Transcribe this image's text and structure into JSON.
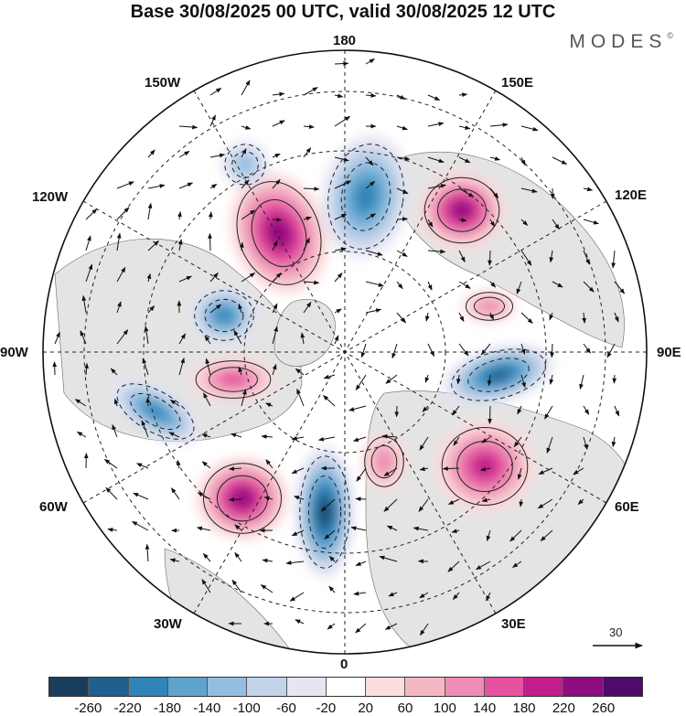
{
  "header": {
    "title": "Base 30/08/2025 00 UTC, valid 30/08/2025 12 UTC",
    "brand": "MODES",
    "brand_mark": "©"
  },
  "map": {
    "projection": "north-polar-stereographic",
    "longitude_labels": {
      "top": "180",
      "top_right": "150E",
      "upper_right": "120E",
      "right": "90E",
      "lower_right": "60E",
      "bottom_right": "30E",
      "bottom": "0",
      "bottom_left": "30W",
      "lower_left": "60W",
      "left": "90W",
      "upper_left": "120W",
      "top_left": "150W"
    },
    "colors": {
      "land": "#e4e4e4",
      "ocean": "#ffffff",
      "graticule": "#222222",
      "coast": "#555555"
    }
  },
  "vector_reference": {
    "label": "30"
  },
  "colorbar": {
    "ticks": [
      "-260",
      "-220",
      "-180",
      "-140",
      "-100",
      "-60",
      "-20",
      "20",
      "60",
      "100",
      "140",
      "180",
      "220",
      "260"
    ],
    "colors": [
      "#1b3d5c",
      "#20608f",
      "#2f84b8",
      "#5fa4cf",
      "#93bedf",
      "#c3d3ea",
      "#e6e6f3",
      "#ffffff",
      "#fadede",
      "#f4b8c4",
      "#ee8cb5",
      "#e5529f",
      "#c31d8c",
      "#8d0c7e",
      "#4f0b6b"
    ]
  },
  "anomalies": [
    {
      "name": "pos-west-pacific",
      "value": 240
    },
    {
      "name": "neg-east-siberia",
      "value": -200
    },
    {
      "name": "pos-far-east",
      "value": 220
    },
    {
      "name": "neg-alaska-gulf",
      "value": -120
    },
    {
      "name": "neg-canada-north",
      "value": -180
    },
    {
      "name": "pos-canada-arctic",
      "value": 160
    },
    {
      "name": "neg-hudson",
      "value": -180
    },
    {
      "name": "pos-north-atlantic",
      "value": 240
    },
    {
      "name": "neg-iceland",
      "value": -260
    },
    {
      "name": "pos-europe",
      "value": 100
    },
    {
      "name": "pos-west-siberia",
      "value": 200
    },
    {
      "name": "neg-central-siberia",
      "value": -220
    },
    {
      "name": "pos-kara",
      "value": 120
    }
  ]
}
